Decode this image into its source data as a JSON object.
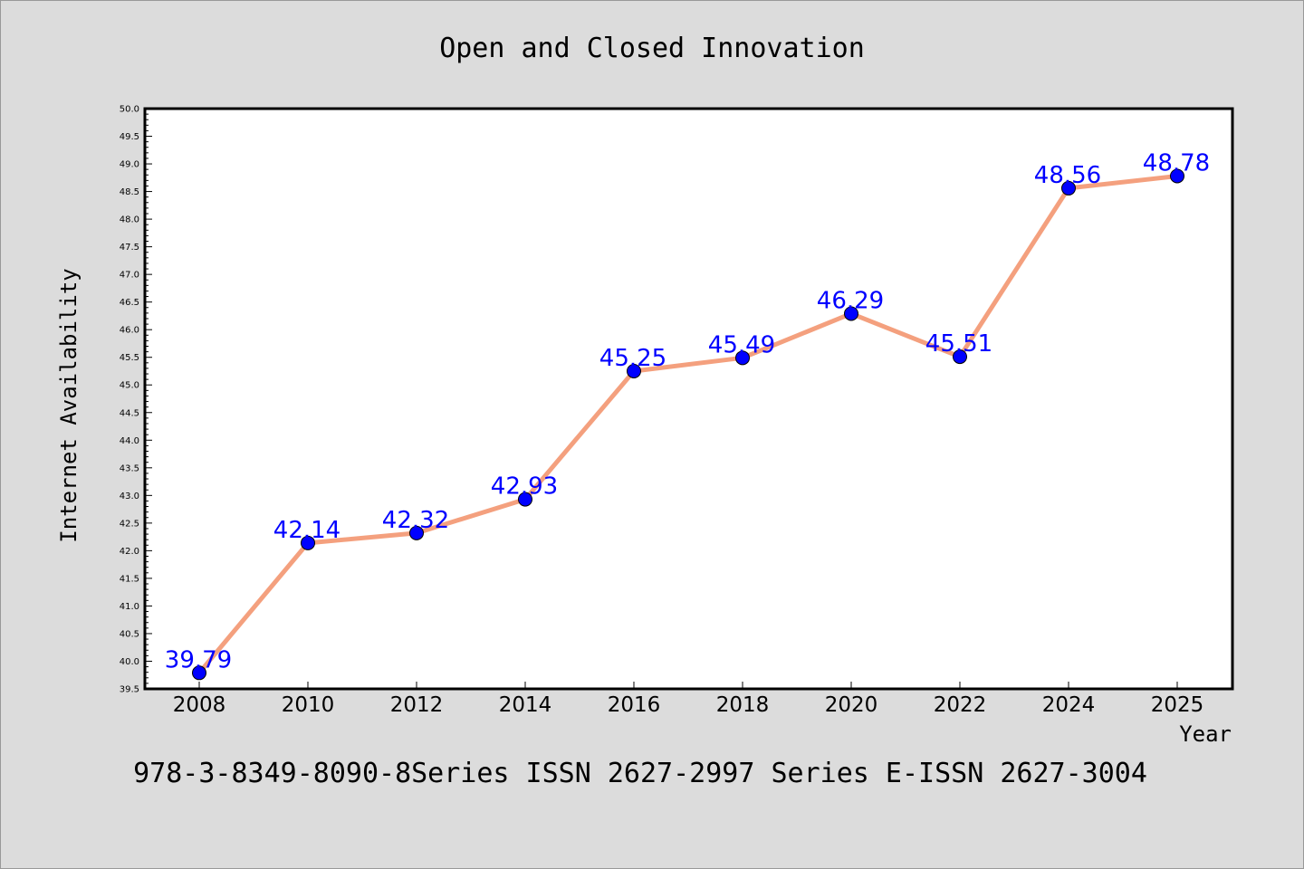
{
  "chart_data": {
    "type": "line",
    "title": "Open and Closed Innovation",
    "xlabel": "Year",
    "ylabel": "Internet Availability",
    "categories": [
      "2008",
      "2010",
      "2012",
      "2014",
      "2016",
      "2018",
      "2020",
      "2022",
      "2024",
      "2025"
    ],
    "series": [
      {
        "values": [
          39.79,
          42.14,
          42.32,
          42.93,
          45.25,
          45.49,
          46.29,
          45.51,
          48.56,
          48.78
        ],
        "data_labels": [
          "39.79",
          "42.14",
          "42.32",
          "42.93",
          "45.25",
          "45.49",
          "46.29",
          "45.51",
          "48.56",
          "48.78"
        ],
        "line_color": "#f4a07e",
        "marker_color": "#0000ff"
      }
    ],
    "ylim": [
      39.5,
      50.0
    ],
    "yticks": [
      "39.5",
      "40.0",
      "40.5",
      "41.0",
      "41.5",
      "42.0",
      "42.5",
      "43.0",
      "43.5",
      "44.0",
      "44.5",
      "45.0",
      "45.5",
      "46.0",
      "46.5",
      "47.0",
      "47.5",
      "48.0",
      "48.5",
      "49.0",
      "49.5",
      "50.0"
    ],
    "grid": false,
    "legend": "none",
    "colors": {
      "background": "#dcdcdc",
      "plot_area": "#ffffff",
      "line": "#f4a07e",
      "marker": "#0000ff",
      "data_label": "#0000ff"
    }
  },
  "footer": {
    "text": "978-3-8349-8090-8Series ISSN 2627-2997 Series E-ISSN 2627-3004"
  }
}
